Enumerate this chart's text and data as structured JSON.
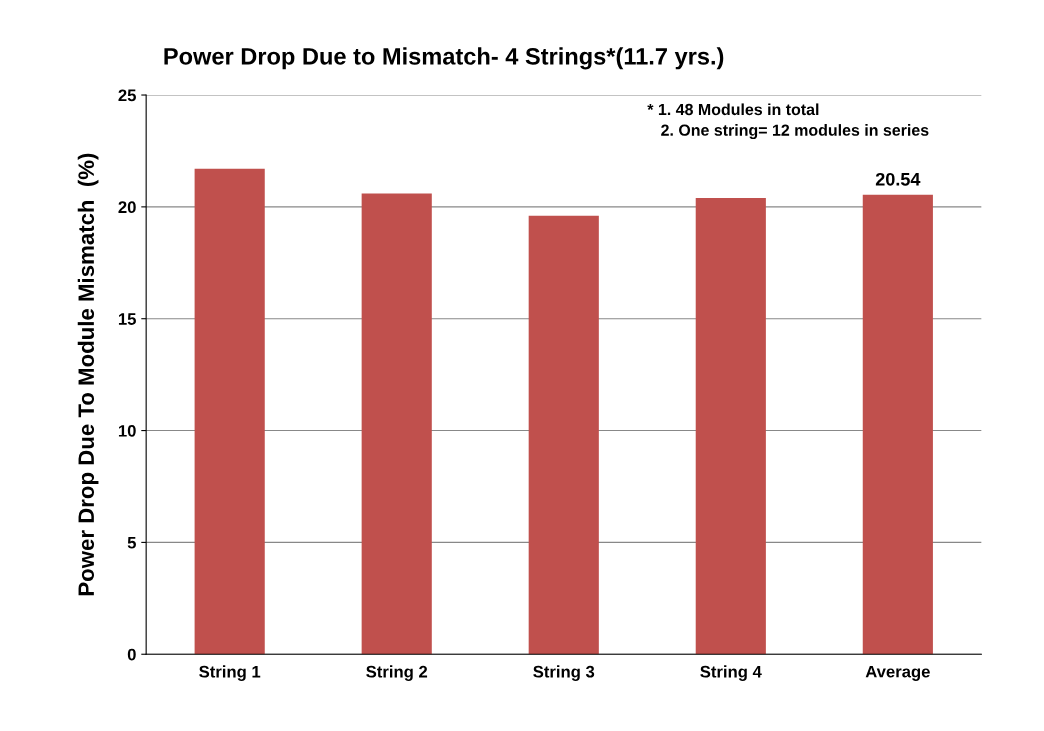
{
  "chart_data": {
    "type": "bar",
    "title": "Power Drop Due to Mismatch- 4 Strings*(11.7 yrs.)",
    "ylabel": "Power Drop Due To Module Mismatch  (%)",
    "categories": [
      "String 1",
      "String 2",
      "String 3",
      "String 4",
      "Average"
    ],
    "values": [
      21.7,
      20.6,
      19.6,
      20.4,
      20.54
    ],
    "value_labels": [
      null,
      null,
      null,
      null,
      "20.54"
    ],
    "color": "#c0504d",
    "ylim": [
      0,
      25
    ],
    "yticks": [
      0,
      5,
      10,
      15,
      20,
      25
    ],
    "grid": "y",
    "annotations": [
      "* 1. 48 Modules in total\n   2. One string= 12 modules in series"
    ]
  }
}
